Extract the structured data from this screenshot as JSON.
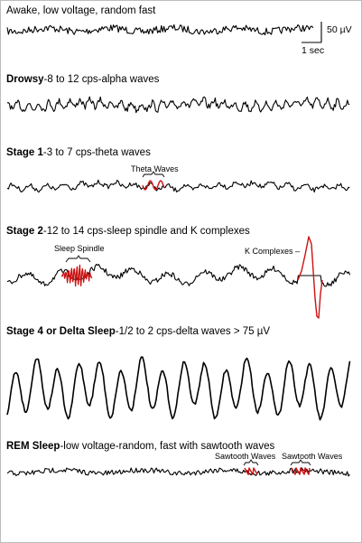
{
  "panels": [
    {
      "id": "awake",
      "title_bold": "",
      "title_rest": "Awake, low voltage, random fast"
    },
    {
      "id": "drowsy",
      "title_bold": "Drowsy",
      "title_rest": "-8 to 12 cps-alpha waves"
    },
    {
      "id": "stage1",
      "title_bold": "Stage 1",
      "title_rest": "-3 to 7 cps-theta waves"
    },
    {
      "id": "stage2",
      "title_bold": "Stage 2",
      "title_rest": "-12 to 14 cps-sleep spindle and K complexes"
    },
    {
      "id": "stage4",
      "title_bold": "Stage 4 or Delta Sleep",
      "title_rest": "-1/2 to 2 cps-delta waves > 75  µV"
    },
    {
      "id": "rem",
      "title_bold": "REM Sleep",
      "title_rest": "-low voltage-random, fast with sawtooth waves"
    }
  ],
  "annotations": {
    "theta_waves": "Theta Waves",
    "sleep_spindle": "Sleep Spindle",
    "k_complexes": "K Complexes –",
    "sawtooth_1": "Sawtooth Waves",
    "sawtooth_2": "Sawtooth Waves"
  },
  "scale_bar": {
    "amplitude": "50 µV",
    "time": "1 sec"
  },
  "colors": {
    "trace": "#000000",
    "highlight": "#cc1111"
  }
}
